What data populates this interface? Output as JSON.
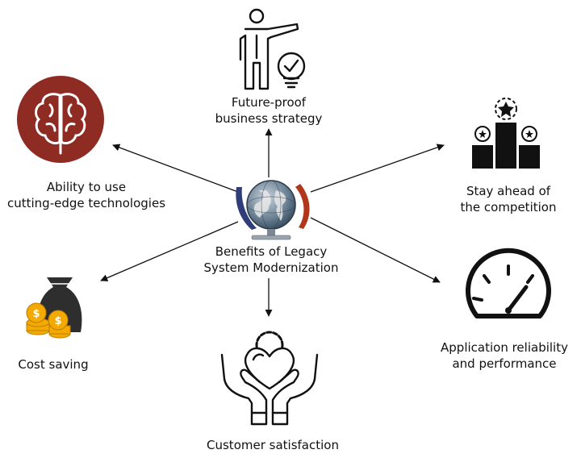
{
  "center": {
    "line1": "Benefits of Legacy",
    "line2": "System Modernization"
  },
  "benefits": [
    {
      "id": "future-proof",
      "line1": "Future-proof",
      "line2": "business strategy",
      "icon": "presenter-lightbulb-icon"
    },
    {
      "id": "cutting-edge",
      "line1": "Ability to use",
      "line2": "cutting-edge technologies",
      "icon": "brain-icon"
    },
    {
      "id": "stay-ahead",
      "line1": "Stay ahead of",
      "line2": "the competition",
      "icon": "podium-icon"
    },
    {
      "id": "cost-saving",
      "line1": "Cost saving",
      "line2": "",
      "icon": "money-bag-coins-icon"
    },
    {
      "id": "reliability",
      "line1": "Application reliability",
      "line2": "and performance",
      "icon": "speedometer-icon"
    },
    {
      "id": "customer-satisfaction",
      "line1": "Customer satisfaction",
      "line2": "",
      "icon": "heart-hands-icon"
    }
  ],
  "colors": {
    "brain_circle": "#8e2b22",
    "coins": "#f2a900",
    "bag": "#2e2e2e",
    "ink": "#111111",
    "globe_ocean": "#6f8598",
    "globe_land": "#e8e8e8",
    "swirl_left": "#2f3d7a",
    "swirl_right": "#b0361c"
  }
}
